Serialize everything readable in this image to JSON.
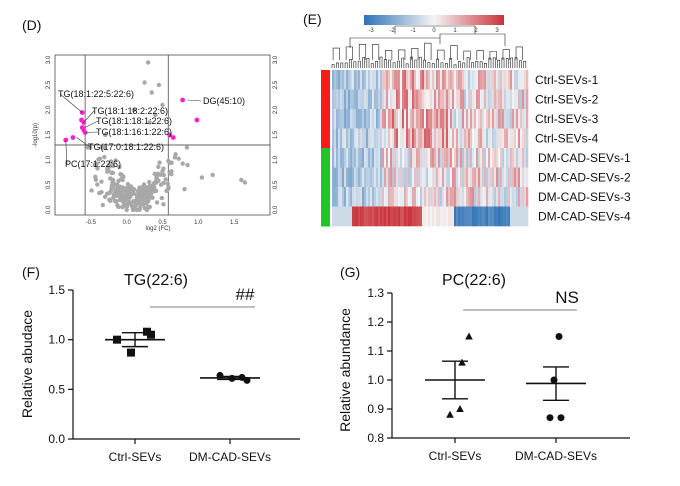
{
  "panels": {
    "D": "(D)",
    "E": "(E)",
    "F": "(F)",
    "G": "(G)"
  },
  "chart_data": [
    {
      "type": "scatter",
      "panel": "(D)",
      "xlabel": "log2 (FC)",
      "ylabel": "-log10(p)",
      "xlim": [
        -1.0,
        2.0
      ],
      "ylim": [
        -0.1,
        3.1
      ],
      "x_ticks": [
        "-0.5",
        "0.0",
        "0.5",
        "1.0",
        "1.5"
      ],
      "y_ticks": [
        "0.0",
        "0.5",
        "1.0",
        "1.5",
        "2.0",
        "2.5",
        "3.0"
      ],
      "thresholds": {
        "x": [
          -0.58,
          0.58
        ],
        "y": 1.3
      },
      "colors": {
        "background_points": "#a8a8a8",
        "highlight_points": "#ff22cc"
      },
      "annotations": [
        {
          "text": "TG(18:1:22:5:22:6)",
          "x": -0.62,
          "y": 1.95
        },
        {
          "text": "TG(18:1:18:2:22:6)",
          "x": -0.6,
          "y": 1.75
        },
        {
          "text": "TG(18:1:18:1:22:6)",
          "x": -0.58,
          "y": 1.65
        },
        {
          "text": "TG(18:1:16:1:22:6)",
          "x": -0.58,
          "y": 1.55
        },
        {
          "text": "TG(17:0:18:1:22:6)",
          "x": -0.7,
          "y": 1.45
        },
        {
          "text": "PC(17:1:22:6)",
          "x": -0.85,
          "y": 1.4
        },
        {
          "text": "DG(45:10)",
          "x": 0.85,
          "y": 2.2
        }
      ],
      "highlight_points": [
        {
          "x": -0.62,
          "y": 1.95
        },
        {
          "x": -0.63,
          "y": 1.8
        },
        {
          "x": -0.6,
          "y": 1.75
        },
        {
          "x": -0.62,
          "y": 1.65
        },
        {
          "x": -0.6,
          "y": 1.6
        },
        {
          "x": -0.58,
          "y": 1.55
        },
        {
          "x": -0.75,
          "y": 1.45
        },
        {
          "x": -0.85,
          "y": 1.4
        },
        {
          "x": 0.78,
          "y": 2.2
        },
        {
          "x": 0.98,
          "y": 1.8
        },
        {
          "x": 0.6,
          "y": 1.5
        },
        {
          "x": 0.65,
          "y": 1.45
        }
      ]
    },
    {
      "type": "heatmap",
      "panel": "(E)",
      "colorbar_ticks": [
        "-3",
        "-2",
        "-1",
        "0",
        "1",
        "2",
        "3"
      ],
      "colors": {
        "low": "#2f72b5",
        "mid": "#f5f5f5",
        "high": "#c9323a",
        "ctrl_group": "#ff1a1a",
        "dm_group": "#22c427"
      },
      "rows": [
        "Ctrl-SEVs-1",
        "Ctrl-SEVs-2",
        "Ctrl-SEVs-3",
        "Ctrl-SEVs-4",
        "DM-CAD-SEVs-1",
        "DM-CAD-SEVs-2",
        "DM-CAD-SEVs-3",
        "DM-CAD-SEVs-4"
      ],
      "row_groups": [
        "ctrl",
        "ctrl",
        "ctrl",
        "ctrl",
        "dm",
        "dm",
        "dm",
        "dm"
      ]
    },
    {
      "type": "scatter",
      "panel": "(F)",
      "title": "TG(22:6)",
      "ylabel": "Relative abudace",
      "categories": [
        "Ctrl-SEVs",
        "DM-CAD-SEVs"
      ],
      "ylim": [
        0.0,
        1.5
      ],
      "y_ticks": [
        "0.0",
        "0.5",
        "1.0",
        "1.5"
      ],
      "significance": "##",
      "series": [
        {
          "category": "Ctrl-SEVs",
          "marker": "square",
          "values": [
            1.08,
            1.05,
            1.0,
            0.87
          ],
          "mean": 1.0,
          "sem_low": 0.93,
          "sem_high": 1.07
        },
        {
          "category": "DM-CAD-SEVs",
          "marker": "circle",
          "values": [
            0.64,
            0.62,
            0.61,
            0.59
          ],
          "mean": 0.615,
          "sem_low": 0.6,
          "sem_high": 0.63
        }
      ]
    },
    {
      "type": "scatter",
      "panel": "(G)",
      "title": "PC(22:6)",
      "ylabel": "Relative abundance",
      "categories": [
        "Ctrl-SEVs",
        "DM-CAD-SEVs"
      ],
      "ylim": [
        0.8,
        1.3
      ],
      "y_ticks": [
        "0.8",
        "0.9",
        "1.0",
        "1.1",
        "1.2",
        "1.3"
      ],
      "significance": "NS",
      "series": [
        {
          "category": "Ctrl-SEVs",
          "marker": "triangle",
          "values": [
            1.15,
            1.06,
            0.9,
            0.88
          ],
          "mean": 1.0,
          "sem_low": 0.935,
          "sem_high": 1.065
        },
        {
          "category": "DM-CAD-SEVs",
          "marker": "circle",
          "values": [
            1.15,
            1.0,
            0.87,
            0.87
          ],
          "mean": 0.988,
          "sem_low": 0.93,
          "sem_high": 1.045
        }
      ]
    }
  ]
}
